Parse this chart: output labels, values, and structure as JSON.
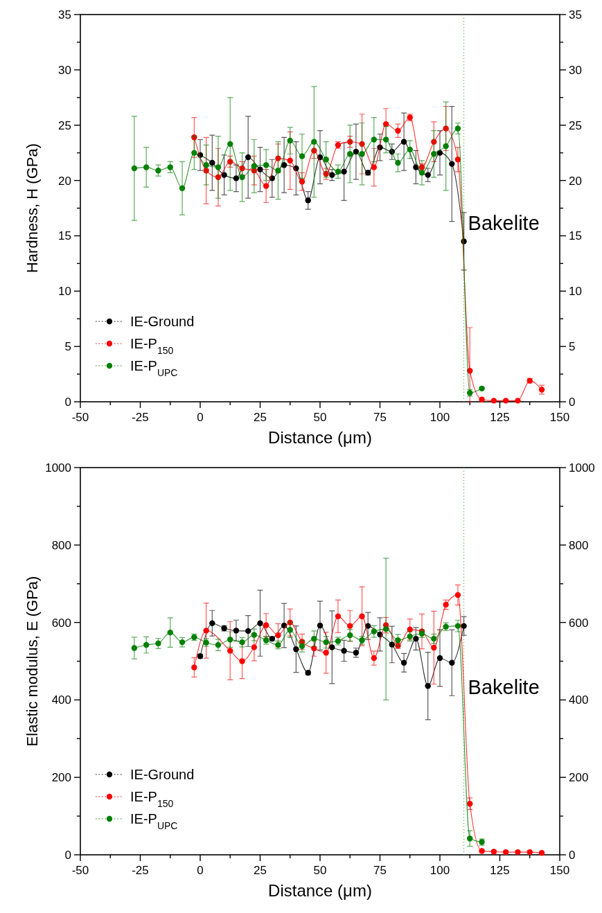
{
  "chart_data": [
    {
      "type": "line",
      "xlabel": "Distance (μm)",
      "ylabel": "Hardness, H (GPa)",
      "xlim": [
        -50,
        150
      ],
      "xticks": [
        -50,
        {
          "value": -37.5,
          "label": null
        },
        -25,
        {
          "value": -12.5,
          "label": null
        },
        0,
        {
          "value": 12.5,
          "label": null
        },
        25,
        {
          "value": 37.5,
          "label": null
        },
        50,
        {
          "value": 62.5,
          "label": null
        },
        75,
        {
          "value": 87.5,
          "label": null
        },
        100,
        {
          "value": 112.5,
          "label": null
        },
        125,
        {
          "value": 137.5,
          "label": null
        },
        150
      ],
      "ylim": [
        0,
        35
      ],
      "yticks": [
        0,
        {
          "value": 2.5,
          "label": null
        },
        5,
        {
          "value": 7.5,
          "label": null
        },
        10,
        {
          "value": 12.5,
          "label": null
        },
        15,
        {
          "value": 17.5,
          "label": null
        },
        20,
        {
          "value": 22.5,
          "label": null
        },
        25,
        {
          "value": 27.5,
          "label": null
        },
        30,
        {
          "value": 32.5,
          "label": null
        },
        35
      ],
      "y2lim": [
        0,
        35
      ],
      "y2ticks": [
        0,
        {
          "value": 2.5,
          "label": null
        },
        5,
        {
          "value": 7.5,
          "label": null
        },
        10,
        {
          "value": 12.5,
          "label": null
        },
        15,
        {
          "value": 17.5,
          "label": null
        },
        20,
        {
          "value": 22.5,
          "label": null
        },
        25,
        {
          "value": 27.5,
          "label": null
        },
        30,
        {
          "value": 32.5,
          "label": null
        },
        35
      ],
      "legend": "bottom left",
      "marker": "circle",
      "line_style": "solid",
      "ref_lines": [
        {
          "axis": "x",
          "value": 110,
          "color": "#4caf50",
          "line_style": "dotted"
        }
      ],
      "annotations": [
        {
          "text": "Bakelite",
          "x": 110,
          "y": 15
        }
      ],
      "series": [
        {
          "name": "IE-Ground",
          "color": "#000000",
          "x": [
            0,
            5,
            10,
            15,
            20,
            25,
            30,
            35,
            40,
            45,
            50,
            55,
            60,
            65,
            70,
            75,
            80,
            85,
            90,
            95,
            100,
            105,
            110
          ],
          "values": [
            22.3,
            21.6,
            20.5,
            20.2,
            22.1,
            21.0,
            20.2,
            21.4,
            21.1,
            18.2,
            22.1,
            20.5,
            20.8,
            22.6,
            20.7,
            23.0,
            22.6,
            23.5,
            21.2,
            20.5,
            22.5,
            21.5,
            14.5
          ],
          "errors": [
            1.4,
            2.5,
            1.8,
            1.2,
            3.7,
            2,
            1.7,
            2.5,
            2.4,
            0.8,
            2.4,
            0.5,
            2.6,
            2.5,
            0.2,
            1.2,
            0.7,
            2.6,
            1.5,
            0.6,
            2,
            5.2,
            2.6
          ]
        },
        {
          "name": "IE-P$_{150}$",
          "color": "#ff0000",
          "x": [
            -2.5,
            2.5,
            7.5,
            12.5,
            17.5,
            22.5,
            27.5,
            32.5,
            37.5,
            42.5,
            47.5,
            52.5,
            57.5,
            62.5,
            67.5,
            72.5,
            77.5,
            82.5,
            87.5,
            92.5,
            97.5,
            102.5,
            107.5,
            112.5,
            117.5,
            122.5,
            127.5,
            132.5,
            137.5,
            142.5
          ],
          "values": [
            23.9,
            20.9,
            20.3,
            21.7,
            21.1,
            20.9,
            19.5,
            22.0,
            21.8,
            19.9,
            22.7,
            20.6,
            23.2,
            23.5,
            23.3,
            21.2,
            25.1,
            24.5,
            25.7,
            21.2,
            23.5,
            24.7,
            21.9,
            2.8,
            0.2,
            0.1,
            0.1,
            0.1,
            1.9,
            1.1
          ],
          "errors": [
            1.8,
            3,
            2.6,
            0.5,
            0.6,
            1.3,
            1.5,
            1.3,
            2.6,
            0.8,
            0.7,
            0.5,
            0.3,
            0.5,
            2.7,
            1.7,
            1.4,
            0.6,
            0.3,
            0.3,
            1.8,
            2,
            1.1,
            [
              0,
              6.7
            ],
            null,
            null,
            null,
            null,
            0.2,
            0.4
          ]
        },
        {
          "name": "IE-P$_{UPC}$",
          "color": "#008000",
          "x": [
            -27.5,
            -22.5,
            -17.5,
            -12.5,
            -7.5,
            -2.5,
            2.5,
            7.5,
            12.5,
            17.5,
            22.5,
            27.5,
            32.5,
            37.5,
            42.5,
            47.5,
            52.5,
            57.5,
            62.5,
            67.5,
            72.5,
            77.5,
            82.5,
            87.5,
            92.5,
            97.5,
            102.5,
            107.5,
            112.5,
            117.5
          ],
          "values": [
            21.1,
            21.2,
            20.9,
            21.2,
            19.3,
            22.5,
            21.4,
            21.2,
            23.3,
            20.3,
            21.3,
            21.4,
            20.9,
            23.6,
            22.2,
            23.5,
            21.9,
            20.8,
            22.4,
            22.4,
            23.7,
            23.7,
            21.6,
            22.8,
            20.7,
            22.4,
            23.1,
            24.7,
            0.8,
            1.2
          ],
          "errors": [
            4.7,
            1.8,
            0.5,
            0.5,
            2.4,
            1.5,
            1.8,
            2.8,
            4.2,
            2.2,
            2.4,
            1.4,
            2.6,
            1.2,
            2,
            5,
            1.6,
            0.6,
            2.6,
            2.8,
            2,
            1.2,
            0.8,
            0.8,
            1.1,
            2.1,
            4,
            0.5,
            0.3,
            0.1
          ]
        }
      ]
    },
    {
      "type": "line",
      "xlabel": "Distance (μm)",
      "ylabel": "Elastic modulus, E (GPa)",
      "xlim": [
        -50,
        150
      ],
      "xticks": [
        -50,
        {
          "value": -37.5,
          "label": null
        },
        -25,
        {
          "value": -12.5,
          "label": null
        },
        0,
        {
          "value": 12.5,
          "label": null
        },
        25,
        {
          "value": 37.5,
          "label": null
        },
        50,
        {
          "value": 62.5,
          "label": null
        },
        75,
        {
          "value": 87.5,
          "label": null
        },
        100,
        {
          "value": 112.5,
          "label": null
        },
        125,
        {
          "value": 137.5,
          "label": null
        },
        150
      ],
      "ylim": [
        0,
        1000
      ],
      "yticks": [
        0,
        {
          "value": 100,
          "label": null
        },
        200,
        {
          "value": 300,
          "label": null
        },
        400,
        {
          "value": 500,
          "label": null
        },
        600,
        {
          "value": 700,
          "label": null
        },
        800,
        {
          "value": 900,
          "label": null
        },
        1000
      ],
      "y2lim": [
        0,
        1000
      ],
      "y2ticks": [
        0,
        {
          "value": 100,
          "label": null
        },
        200,
        {
          "value": 300,
          "label": null
        },
        400,
        {
          "value": 500,
          "label": null
        },
        600,
        {
          "value": 700,
          "label": null
        },
        800,
        {
          "value": 900,
          "label": null
        },
        1000
      ],
      "legend": "bottom left",
      "marker": "circle",
      "line_style": "solid",
      "ref_lines": [
        {
          "axis": "x",
          "value": 110,
          "color": "#4caf50",
          "line_style": "dotted"
        }
      ],
      "annotations": [
        {
          "text": "Bakelite",
          "x": 110,
          "y": 400
        }
      ],
      "series": [
        {
          "name": "IE-Ground",
          "color": "#000000",
          "x": [
            0,
            5,
            10,
            15,
            20,
            25,
            30,
            35,
            40,
            45,
            50,
            55,
            60,
            65,
            70,
            75,
            80,
            85,
            90,
            95,
            100,
            105,
            110
          ],
          "values": [
            513,
            598,
            585,
            579,
            578,
            598,
            558,
            592,
            531,
            470,
            592,
            536,
            527,
            522,
            591,
            569,
            543,
            496,
            558,
            436,
            508,
            496,
            591
          ],
          "errors": [
            5,
            33,
            7,
            27,
            40,
            85,
            5,
            57,
            60,
            5,
            63,
            94,
            27,
            12,
            35,
            43,
            47,
            24,
            29,
            87,
            73,
            85,
            24
          ]
        },
        {
          "name": "IE-P$_{150}$",
          "color": "#ff0000",
          "x": [
            -2.5,
            2.5,
            7.5,
            12.5,
            17.5,
            22.5,
            27.5,
            32.5,
            37.5,
            42.5,
            47.5,
            52.5,
            57.5,
            62.5,
            67.5,
            72.5,
            77.5,
            82.5,
            87.5,
            92.5,
            97.5,
            102.5,
            107.5,
            112.5,
            117.5,
            122.5,
            127.5,
            132.5,
            137.5,
            142.5
          ],
          "values": [
            484,
            579,
            null,
            527,
            500,
            536,
            593,
            567,
            600,
            550,
            533,
            522,
            616,
            591,
            616,
            508,
            593,
            540,
            582,
            577,
            535,
            646,
            671,
            132,
            10,
            8,
            7,
            7,
            7,
            5
          ],
          "errors": [
            25,
            71,
            null,
            75,
            45,
            35,
            30,
            30,
            35,
            20,
            20,
            53,
            42,
            40,
            76,
            18,
            20,
            7,
            27,
            45,
            94,
            12,
            26,
            15,
            4,
            4,
            null,
            null,
            null,
            null
          ]
        },
        {
          "name": "IE-P$_{UPC}$",
          "color": "#008000",
          "x": [
            -27.5,
            -22.5,
            -17.5,
            -12.5,
            -7.5,
            -2.5,
            2.5,
            7.5,
            12.5,
            17.5,
            22.5,
            27.5,
            32.5,
            37.5,
            42.5,
            47.5,
            52.5,
            57.5,
            62.5,
            67.5,
            72.5,
            77.5,
            82.5,
            87.5,
            92.5,
            97.5,
            102.5,
            107.5,
            112.5,
            117.5
          ],
          "values": [
            534,
            542,
            546,
            574,
            549,
            562,
            548,
            542,
            556,
            549,
            568,
            554,
            542,
            581,
            539,
            558,
            549,
            552,
            567,
            554,
            577,
            583,
            554,
            564,
            571,
            558,
            589,
            591,
            42,
            33
          ],
          "errors": [
            28,
            21,
            13,
            38,
            12,
            8,
            10,
            15,
            20,
            12,
            15,
            10,
            10,
            20,
            15,
            20,
            15,
            10,
            15,
            10,
            15,
            183,
            15,
            12,
            10,
            12,
            10,
            15,
            20,
            8
          ]
        }
      ]
    }
  ]
}
